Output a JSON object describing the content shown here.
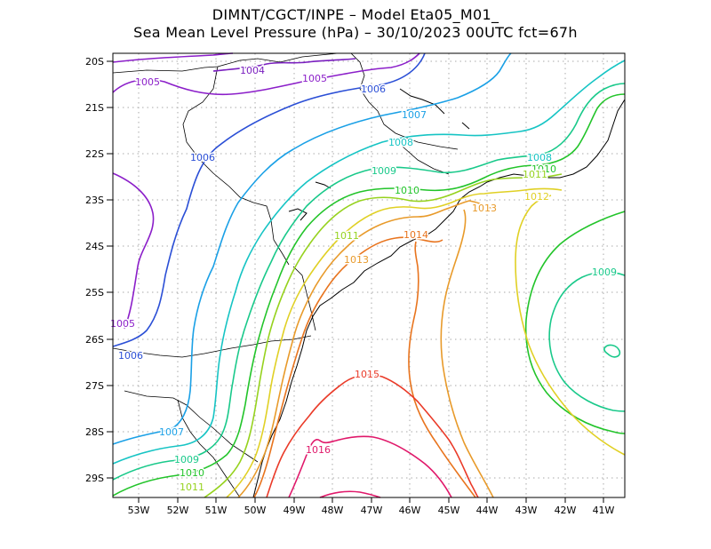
{
  "title": {
    "line1": "DIMNT/CGCT/INPE –  Model Eta05_M01_",
    "line2": "Sea Mean Level Pressure (hPa) – 30/10/2023 00UTC fct=67h"
  },
  "axes": {
    "lat_labels": [
      "20S",
      "21S",
      "22S",
      "23S",
      "24S",
      "25S",
      "26S",
      "27S",
      "28S",
      "29S"
    ],
    "lon_labels": [
      "53W",
      "52W",
      "51W",
      "50W",
      "49W",
      "48W",
      "47W",
      "46W",
      "45W",
      "44W",
      "43W",
      "42W",
      "41W"
    ]
  },
  "contours": [
    {
      "level": "1004",
      "color": "#7a1fbf"
    },
    {
      "level": "1005",
      "color": "#8b1ec9"
    },
    {
      "level": "1006",
      "color": "#2b4fd6"
    },
    {
      "level": "1007",
      "color": "#1aa0e6"
    },
    {
      "level": "1008",
      "color": "#16c4c4"
    },
    {
      "level": "1009",
      "color": "#19c98a"
    },
    {
      "level": "1010",
      "color": "#22c42a"
    },
    {
      "level": "1011",
      "color": "#96d21e"
    },
    {
      "level": "1012",
      "color": "#e0d024"
    },
    {
      "level": "1013",
      "color": "#e89a2a"
    },
    {
      "level": "1014",
      "color": "#e8741e"
    },
    {
      "level": "1015",
      "color": "#ea3a28"
    },
    {
      "level": "1016",
      "color": "#e0186a"
    }
  ],
  "labels": [
    {
      "text": "1004",
      "color": "#7a1fbf"
    },
    {
      "text": "1005",
      "color": "#8b1ec9"
    },
    {
      "text": "1005",
      "color": "#8b1ec9"
    },
    {
      "text": "1005",
      "color": "#8b1ec9"
    },
    {
      "text": "1006",
      "color": "#2b4fd6"
    },
    {
      "text": "1006",
      "color": "#2b4fd6"
    },
    {
      "text": "1006",
      "color": "#2b4fd6"
    },
    {
      "text": "1007",
      "color": "#1aa0e6"
    },
    {
      "text": "1007",
      "color": "#1aa0e6"
    },
    {
      "text": "1008",
      "color": "#16c4c4"
    },
    {
      "text": "1008",
      "color": "#16c4c4"
    },
    {
      "text": "1009",
      "color": "#19c98a"
    },
    {
      "text": "1009",
      "color": "#19c98a"
    },
    {
      "text": "1009",
      "color": "#19c98a"
    },
    {
      "text": "1010",
      "color": "#22c42a"
    },
    {
      "text": "1010",
      "color": "#22c42a"
    },
    {
      "text": "1010",
      "color": "#22c42a"
    },
    {
      "text": "1011",
      "color": "#96d21e"
    },
    {
      "text": "1011",
      "color": "#96d21e"
    },
    {
      "text": "1011",
      "color": "#96d21e"
    },
    {
      "text": "1012",
      "color": "#e0d024"
    },
    {
      "text": "1013",
      "color": "#e89a2a"
    },
    {
      "text": "1013",
      "color": "#e89a2a"
    },
    {
      "text": "1014",
      "color": "#e8741e"
    },
    {
      "text": "1015",
      "color": "#ea3a28"
    },
    {
      "text": "1016",
      "color": "#e0186a"
    }
  ]
}
